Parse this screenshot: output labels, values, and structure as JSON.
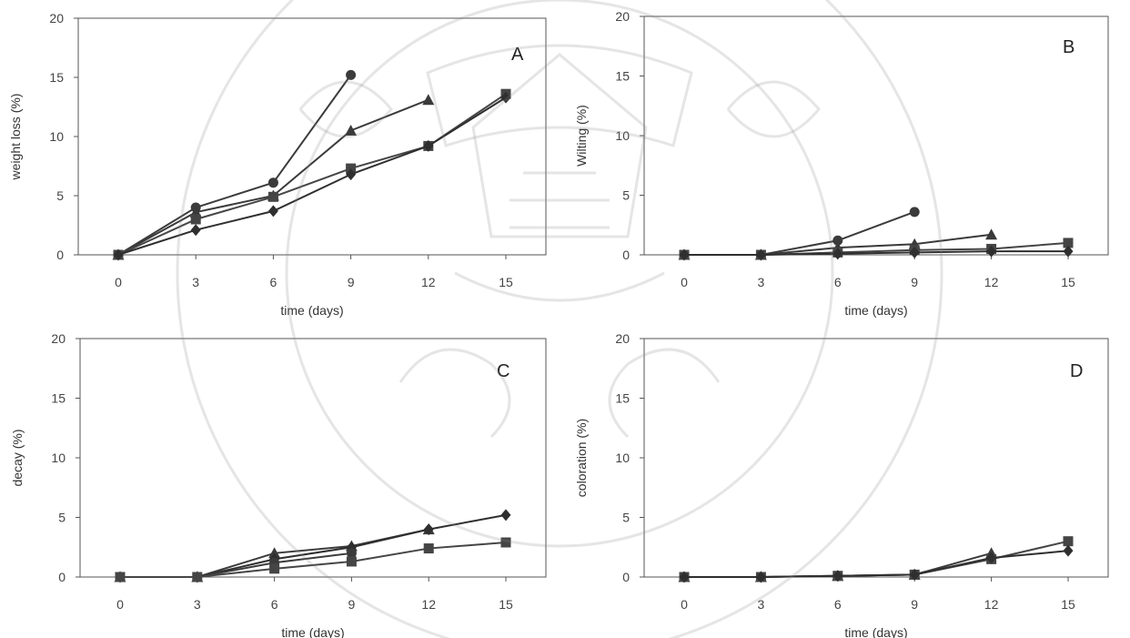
{
  "chart_data": [
    {
      "type": "line",
      "panel_label": "A",
      "xlabel": "time (days)",
      "ylabel": "weight loss (%)",
      "x": [
        0,
        3,
        6,
        9,
        12,
        15
      ],
      "xlim": [
        0,
        15
      ],
      "ylim": [
        0,
        20
      ],
      "yticks": [
        0,
        5,
        10,
        15,
        20
      ],
      "series": [
        {
          "marker": "circle",
          "values": [
            0,
            4.0,
            6.1,
            15.2,
            null,
            null
          ]
        },
        {
          "marker": "triangle",
          "values": [
            0,
            3.6,
            5.0,
            10.5,
            13.1,
            null
          ]
        },
        {
          "marker": "square",
          "values": [
            0,
            3.0,
            4.9,
            7.3,
            9.2,
            13.6
          ]
        },
        {
          "marker": "diamond",
          "values": [
            0,
            2.1,
            3.7,
            6.8,
            9.2,
            13.3
          ]
        }
      ]
    },
    {
      "type": "line",
      "panel_label": "B",
      "xlabel": "time (days)",
      "ylabel": "Wilting (%)",
      "x": [
        0,
        3,
        6,
        9,
        12,
        15
      ],
      "xlim": [
        0,
        15
      ],
      "ylim": [
        0,
        20
      ],
      "yticks": [
        0,
        5,
        10,
        15,
        20
      ],
      "series": [
        {
          "marker": "circle",
          "values": [
            0,
            0,
            1.2,
            3.6,
            null,
            null
          ]
        },
        {
          "marker": "triangle",
          "values": [
            0,
            0,
            0.6,
            0.9,
            1.7,
            null
          ]
        },
        {
          "marker": "square",
          "values": [
            0,
            0,
            0.2,
            0.4,
            0.5,
            1.0
          ]
        },
        {
          "marker": "diamond",
          "values": [
            0,
            0,
            0.1,
            0.2,
            0.3,
            0.3
          ]
        }
      ]
    },
    {
      "type": "line",
      "panel_label": "C",
      "xlabel": "time (days)",
      "ylabel": "decay (%)",
      "x": [
        0,
        3,
        6,
        9,
        12,
        15
      ],
      "xlim": [
        0,
        15
      ],
      "ylim": [
        0,
        20
      ],
      "yticks": [
        0,
        5,
        10,
        15,
        20
      ],
      "series": [
        {
          "marker": "triangle",
          "values": [
            0,
            0,
            2.0,
            2.6,
            4.0,
            null
          ]
        },
        {
          "marker": "diamond",
          "values": [
            0,
            0,
            1.5,
            2.5,
            4.0,
            5.2
          ]
        },
        {
          "marker": "circle",
          "values": [
            0,
            0,
            1.2,
            2.0,
            null,
            null
          ]
        },
        {
          "marker": "square",
          "values": [
            0,
            0,
            0.7,
            1.3,
            2.4,
            2.9
          ]
        }
      ]
    },
    {
      "type": "line",
      "panel_label": "D",
      "xlabel": "time (days)",
      "ylabel": "coloration (%)",
      "x": [
        0,
        3,
        6,
        9,
        12,
        15
      ],
      "xlim": [
        0,
        15
      ],
      "ylim": [
        0,
        20
      ],
      "yticks": [
        0,
        5,
        10,
        15,
        20
      ],
      "series": [
        {
          "marker": "triangle",
          "values": [
            0,
            0,
            0.1,
            0.2,
            2.0,
            null
          ]
        },
        {
          "marker": "square",
          "values": [
            0,
            0,
            0.1,
            0.2,
            1.5,
            3.0
          ]
        },
        {
          "marker": "diamond",
          "values": [
            0,
            0,
            0.1,
            0.2,
            1.6,
            2.2
          ]
        }
      ]
    }
  ]
}
